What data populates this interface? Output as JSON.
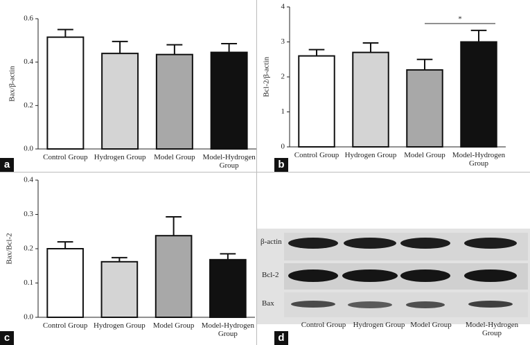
{
  "chart_data": [
    {
      "type": "bar",
      "panel": "a",
      "ylabel": "Bax/β-actin",
      "categories": [
        "Control Group",
        "Hydrogen Group",
        "Model Group",
        "Model-Hydrogen Group"
      ],
      "values": [
        0.515,
        0.44,
        0.435,
        0.445
      ],
      "errors": [
        0.035,
        0.055,
        0.045,
        0.04
      ],
      "colors": [
        "#ffffff",
        "#d4d4d4",
        "#a8a8a8",
        "#111111"
      ],
      "ylim": [
        0,
        0.6
      ],
      "yticks": [
        {
          "value": 0,
          "label": "0.0"
        },
        0.2,
        0.4,
        0.6
      ]
    },
    {
      "type": "bar",
      "panel": "b",
      "ylabel": "Bcl-2/β-actin",
      "categories": [
        "Control Group",
        "Hydrogen Group",
        "Model Group",
        "Model-Hydrogen Group"
      ],
      "values": [
        2.6,
        2.7,
        2.2,
        3.0
      ],
      "errors": [
        0.18,
        0.27,
        0.3,
        0.33
      ],
      "colors": [
        "#ffffff",
        "#d4d4d4",
        "#a8a8a8",
        "#111111"
      ],
      "annotation": "*",
      "ylim": [
        0,
        4
      ],
      "yticks": [
        0,
        1,
        2,
        3,
        4
      ]
    },
    {
      "type": "bar",
      "panel": "c",
      "ylabel": "Bax/Bcl-2",
      "categories": [
        "Control Group",
        "Hydrogen Group",
        "Model Group",
        "Model-Hydrogen Group"
      ],
      "values": [
        0.2,
        0.162,
        0.238,
        0.168
      ],
      "errors": [
        0.02,
        0.012,
        0.055,
        0.017
      ],
      "colors": [
        "#ffffff",
        "#d4d4d4",
        "#a8a8a8",
        "#111111"
      ],
      "ylim": [
        0,
        0.4
      ],
      "yticks": [
        {
          "value": 0,
          "label": "0.0"
        },
        0.1,
        0.2,
        0.3,
        0.4
      ]
    }
  ],
  "blot": {
    "panel": "d",
    "rows": [
      "β-actin",
      "Bcl-2",
      "Bax"
    ],
    "lanes": [
      "Control Group",
      "Hydrogen Group",
      "Model Group",
      "Model-Hydrogen Group"
    ]
  }
}
